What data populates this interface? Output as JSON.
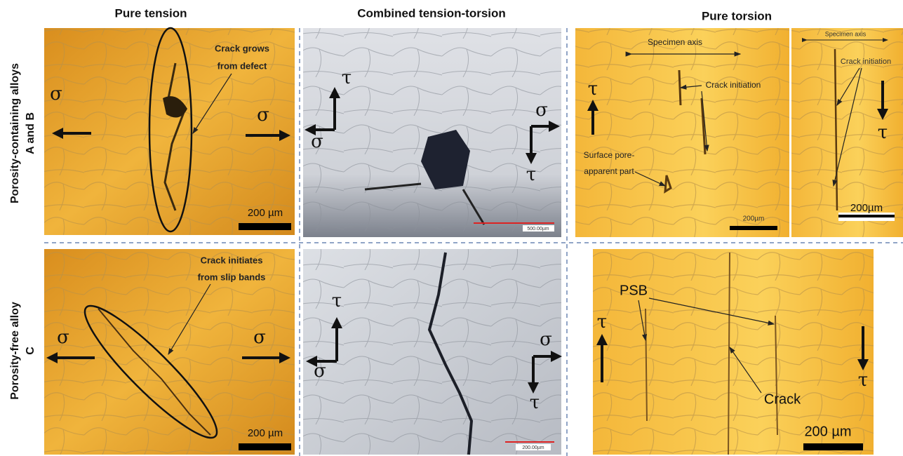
{
  "columns": [
    "Pure tension",
    "Combined tension-torsion",
    "Pure torsion"
  ],
  "rows": [
    [
      "Porosity-containing alloys",
      "A and B"
    ],
    [
      "Porosity-free alloy",
      "C"
    ]
  ],
  "panels": [
    {
      "annotations": [
        "Crack grows",
        "from defect",
        "σ",
        "σ",
        "200 µm"
      ]
    },
    {
      "annotations": [
        "τ",
        "σ",
        "σ",
        "τ",
        "500.00µm"
      ]
    },
    {
      "annotations": [
        "Specimen axis",
        "Crack initiation",
        "Surface pore-",
        "apparent part",
        "τ",
        "200µm"
      ]
    },
    {
      "annotations": [
        "Specimen axis",
        "Crack initiation",
        "τ",
        "200µm"
      ]
    },
    {
      "annotations": [
        "Crack initiates",
        "from slip bands",
        "σ",
        "σ",
        "200 µm"
      ]
    },
    {
      "annotations": [
        "τ",
        "σ",
        "σ",
        "τ",
        "200.00µm"
      ]
    },
    {
      "annotations": [
        "PSB",
        "Crack",
        "τ",
        "τ",
        "200 µm"
      ]
    }
  ]
}
